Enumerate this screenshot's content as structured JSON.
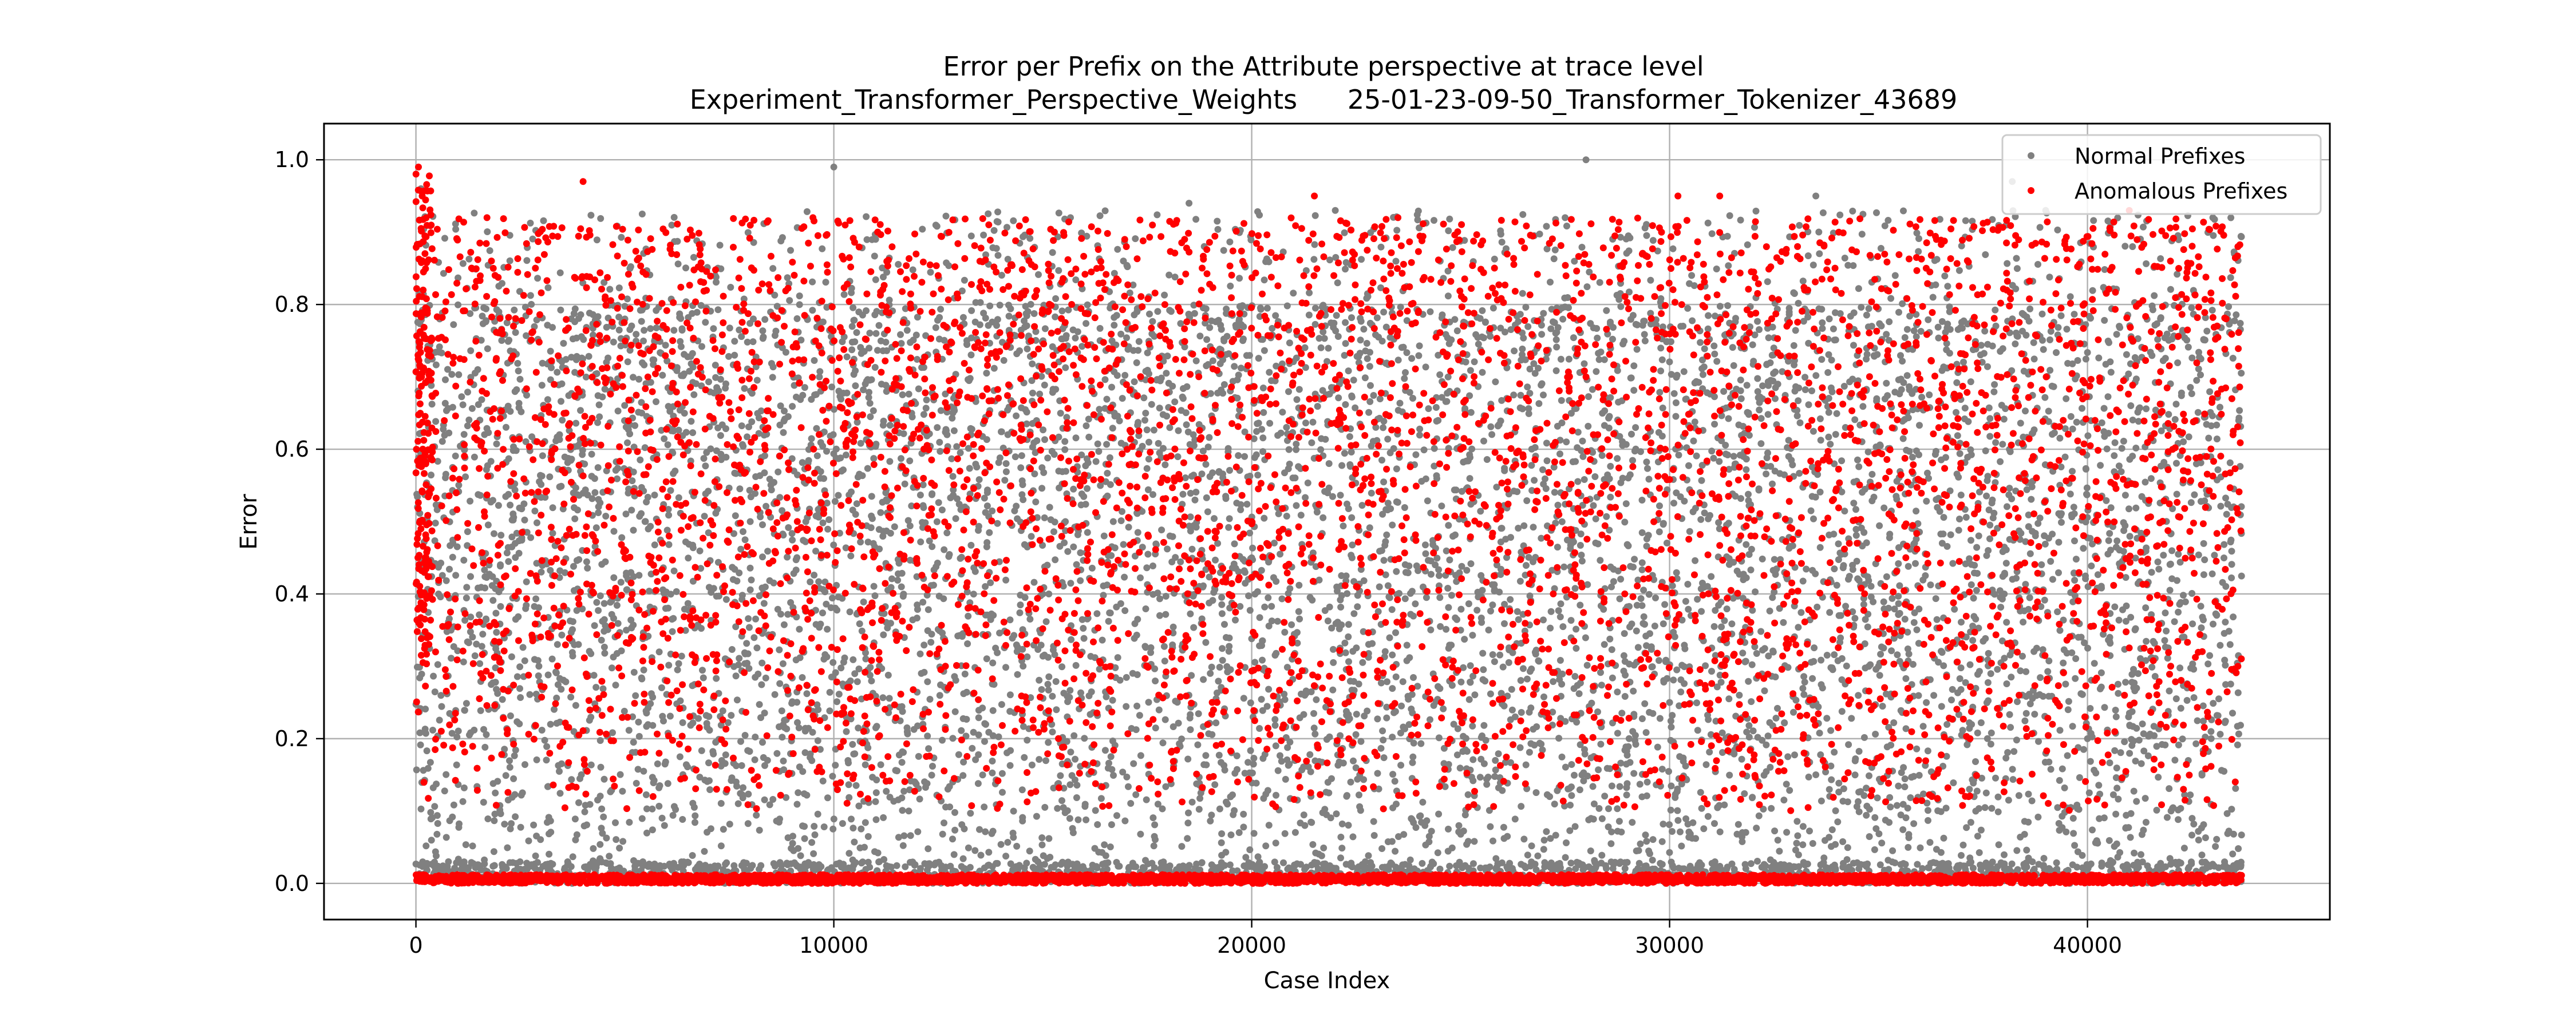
{
  "chart_data": {
    "type": "scatter",
    "title_line1": "Error per Prefix on the Attribute perspective at trace level",
    "title_line2": "Experiment_Transformer_Perspective_Weights      25-01-23-09-50_Transformer_Tokenizer_43689",
    "xlabel": "Case Index",
    "ylabel": "Error",
    "xlim": [
      -2200,
      45800
    ],
    "ylim": [
      -0.05,
      1.05
    ],
    "x_ticks": [
      0,
      10000,
      20000,
      30000,
      40000
    ],
    "x_tick_labels": [
      "0",
      "10000",
      "20000",
      "30000",
      "40000"
    ],
    "y_ticks": [
      0.0,
      0.2,
      0.4,
      0.6,
      0.8,
      1.0
    ],
    "y_tick_labels": [
      "0.0",
      "0.2",
      "0.4",
      "0.6",
      "0.8",
      "1.0"
    ],
    "grid": true,
    "legend_position": "top-right",
    "series": [
      {
        "name": "Normal Prefixes",
        "color": "#808080",
        "x_range": [
          0,
          43689
        ],
        "points": [
          [
            120,
            0.96
          ],
          [
            5000,
            0.78
          ],
          [
            10000,
            0.99
          ],
          [
            11000,
            0.89
          ],
          [
            18500,
            0.94
          ],
          [
            22000,
            0.93
          ],
          [
            27500,
            0.92
          ],
          [
            28000,
            1.0
          ],
          [
            33500,
            0.95
          ],
          [
            38200,
            0.97
          ],
          [
            39000,
            0.93
          ],
          [
            43000,
            0.92
          ],
          [
            20000,
            0.45
          ],
          [
            25000,
            0.35
          ],
          [
            35000,
            0.3
          ],
          [
            40000,
            0.2
          ],
          [
            8000,
            0.5
          ],
          [
            15000,
            0.4
          ],
          [
            30000,
            0.25
          ],
          [
            42000,
            0.1
          ]
        ]
      },
      {
        "name": "Anomalous Prefixes",
        "color": "#ff0000",
        "x_range": [
          0,
          43689
        ],
        "points": [
          [
            60,
            0.99
          ],
          [
            150,
            0.95
          ],
          [
            4000,
            0.97
          ],
          [
            1700,
            0.92
          ],
          [
            9500,
            0.92
          ],
          [
            17000,
            0.88
          ],
          [
            21500,
            0.95
          ],
          [
            23500,
            0.92
          ],
          [
            30200,
            0.95
          ],
          [
            31200,
            0.95
          ],
          [
            41000,
            0.93
          ],
          [
            43600,
            0.88
          ],
          [
            12000,
            0.55
          ],
          [
            25000,
            0.6
          ],
          [
            35000,
            0.55
          ],
          [
            5000,
            0.45
          ],
          [
            20000,
            0.5
          ],
          [
            38000,
            0.3
          ],
          [
            28000,
            0.7
          ],
          [
            43600,
            0.3
          ]
        ]
      }
    ]
  }
}
